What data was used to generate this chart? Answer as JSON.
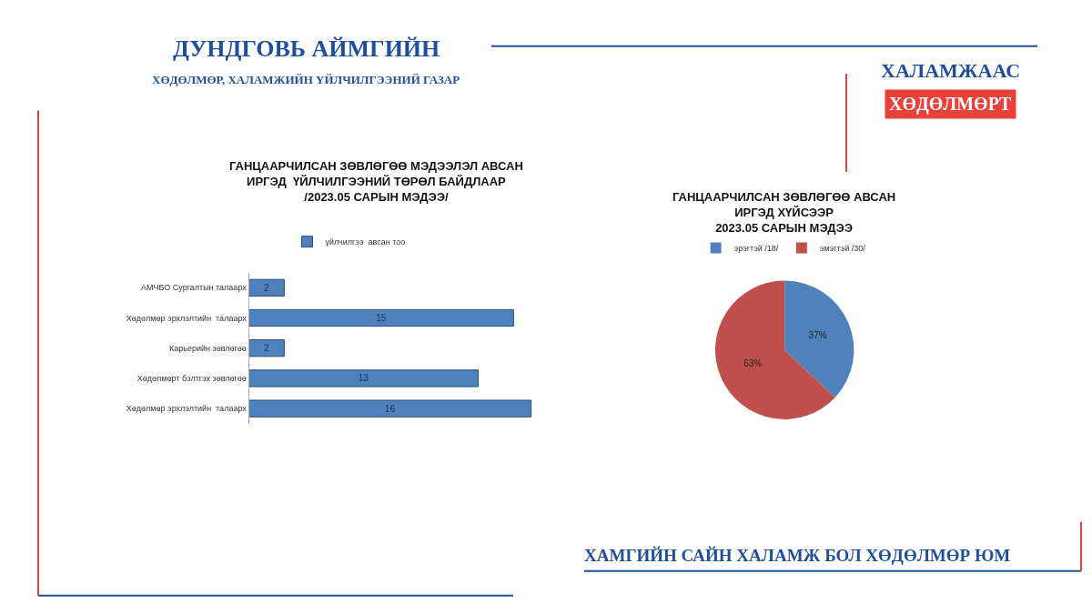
{
  "chart_data": [
    {
      "type": "other",
      "annotations": [
        "ДУНДГОВЬ АЙМГИЙН",
        "ХӨДӨЛМӨР, ХАЛАМЖИЙН ҮЙЛЧИЛГЭЭНИЙ ГАЗАР",
        "ХАЛАМЖААС",
        "ХӨДӨЛМӨРТ",
        "ХАМГИЙН САЙН ХАЛАМЖ БОЛ ХӨДӨЛМӨР ЮМ"
      ]
    },
    {
      "type": "bar",
      "orientation": "horizontal",
      "title": "ГАНЦААРЧИЛСАН ЗӨВЛӨГӨӨ МЭДЭЭЛЭЛ АВСАН\nИРГЭД  ҮЙЛЧИЛГЭЭНИЙ ТӨРӨЛ БАЙДЛААР\n/2023.05 САРЫН МЭДЭЭ/",
      "categories": [
        "АМЧБО Сургалтын талаарх",
        "Хөдөлмөр эрхлэлтийн  талаарх",
        "Карьерийн зөвлөгөө",
        "Хөдөлмөрт бэлтгэх зөвлөгөө",
        "Хөдөлмөр эрхлэлтийн  талаарх"
      ],
      "series": [
        {
          "name": "үйлчилгээ  авсан тоо",
          "color": "#4f81bd",
          "values": [
            2,
            15,
            2,
            13,
            16
          ]
        }
      ],
      "data_labels": true,
      "legend": "top"
    },
    {
      "type": "pie",
      "title": "ГАНЦААРЧИЛСАН ЗӨВЛӨГӨӨ АВСАН\nИРГЭД ХҮЙСЭЭР\n2023.05 САРЫН МЭДЭЭ",
      "categories": [
        "эрэгтэй /18/",
        "эмэгтэй /30/"
      ],
      "values": [
        37,
        63
      ],
      "colors": [
        "#4f81bd",
        "#c0504d"
      ],
      "value_labels": [
        "37%",
        "63%"
      ],
      "legend": "top"
    }
  ]
}
